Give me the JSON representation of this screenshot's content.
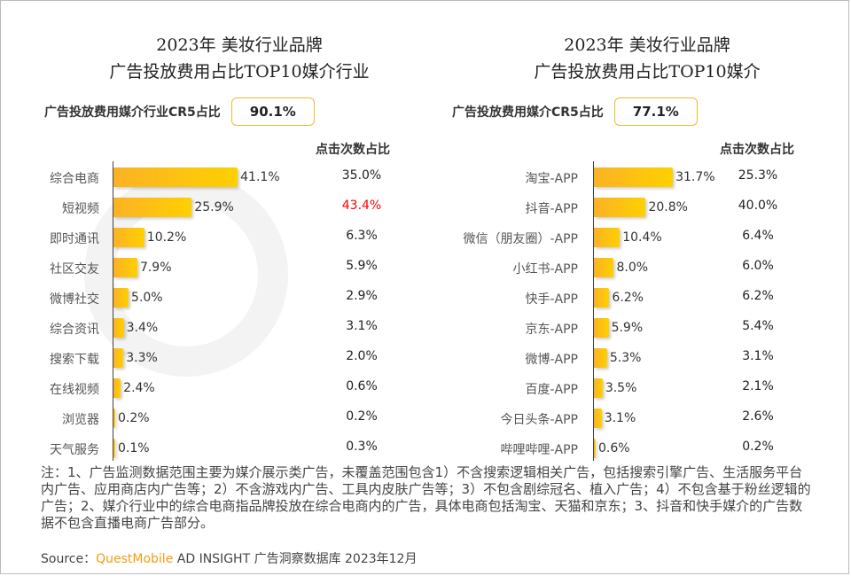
{
  "chart_data": [
    {
      "type": "bar",
      "orientation": "horizontal",
      "title": "2023年 美妆行业品牌\n广告投放费用占比TOP10媒介行业",
      "title_lines": [
        "2023年 美妆行业品牌",
        "广告投放费用占比TOP10媒介行业"
      ],
      "cr5_label": "广告投放费用媒介行业CR5占比",
      "cr5_value": "90.1%",
      "click_header": "点击次数占比",
      "categories": [
        "综合电商",
        "短视频",
        "即时通讯",
        "社区交友",
        "微博社交",
        "综合资讯",
        "搜索下载",
        "在线视频",
        "浏览器",
        "天气服务"
      ],
      "values": [
        41.1,
        25.9,
        10.2,
        7.9,
        5.0,
        3.4,
        3.3,
        2.4,
        0.2,
        0.1
      ],
      "value_labels": [
        "41.1%",
        "25.9%",
        "10.2%",
        "7.9%",
        "5.0%",
        "3.4%",
        "3.3%",
        "2.4%",
        "0.2%",
        "0.1%"
      ],
      "click_share": [
        "35.0%",
        "43.4%",
        "6.3%",
        "5.9%",
        "2.9%",
        "3.1%",
        "2.0%",
        "0.6%",
        "0.2%",
        "0.3%"
      ],
      "highlight_index": 1,
      "highlight_color": "#ff0000"
    },
    {
      "type": "bar",
      "orientation": "horizontal",
      "title_lines": [
        "2023年 美妆行业品牌",
        "广告投放费用占比TOP10媒介"
      ],
      "cr5_label": "广告投放费用媒介CR5占比",
      "cr5_value": "77.1%",
      "click_header": "点击次数占比",
      "categories": [
        "淘宝-APP",
        "抖音-APP",
        "微信（朋友圈）-APP",
        "小红书-APP",
        "快手-APP",
        "京东-APP",
        "微博-APP",
        "百度-APP",
        "今日头条-APP",
        "哔哩哔哩-APP"
      ],
      "values": [
        31.7,
        20.8,
        10.4,
        8.0,
        6.2,
        5.9,
        5.3,
        3.5,
        3.1,
        0.6
      ],
      "value_labels": [
        "31.7%",
        "20.8%",
        "10.4%",
        "8.0%",
        "6.2%",
        "5.9%",
        "5.3%",
        "3.5%",
        "3.1%",
        "0.6%"
      ],
      "click_share": [
        "25.3%",
        "40.0%",
        "6.4%",
        "6.0%",
        "6.2%",
        "5.4%",
        "3.1%",
        "2.1%",
        "2.6%",
        "0.2%"
      ]
    }
  ],
  "colors": {
    "bar_start": "#fbb225",
    "bar_end": "#ffd000",
    "cr_border": "#f5b82a",
    "brand": "#f39c12"
  },
  "watermark": "QUESTMOBILE",
  "note": "注：1、广告监测数据范围主要为媒介展示类广告，未覆盖范围包含1）不含搜索逻辑相关广告，包括搜索引擎广告、生活服务平台内广告、应用商店内广告等；2）不含游戏内广告、工具内皮肤广告等；3）不包含剧综冠名、植入广告；4）不包含基于粉丝逻辑的广告；2、媒介行业中的综合电商指品牌投放在综合电商内的广告，具体电商包括淘宝、天猫和京东；3、抖音和快手媒介的广告数据不包含直播电商广告部分。",
  "source": {
    "prefix": "Source：",
    "brand": "QuestMobile",
    "rest": " AD INSIGHT 广告洞察数据库 2023年12月"
  }
}
